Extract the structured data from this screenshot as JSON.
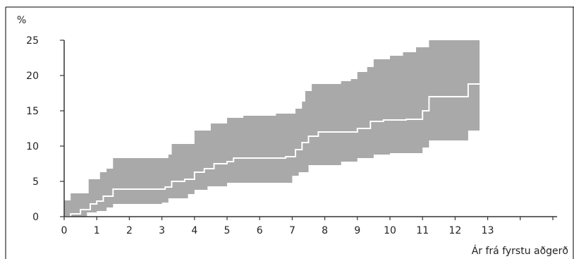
{
  "chart_data": {
    "type": "area",
    "ylabel": "%",
    "xlabel": "Ár frá fyrstu aðgerð",
    "xlim": [
      0,
      15
    ],
    "ylim": [
      0,
      25
    ],
    "x_ticks": [
      0,
      1,
      2,
      3,
      4,
      5,
      6,
      7,
      8,
      9,
      10,
      11,
      12,
      13
    ],
    "y_ticks": [
      0,
      5,
      10,
      15,
      20,
      25
    ],
    "grid": false,
    "colors": {
      "band": "#a9a9a9",
      "line": "#ffffff",
      "axis": "#333333",
      "frame": "#000000"
    },
    "series": [
      {
        "role": "upper-confidence-limit",
        "steps": [
          [
            0,
            2.3
          ],
          [
            0.2,
            3.3
          ],
          [
            0.75,
            5.3
          ],
          [
            1.1,
            6.3
          ],
          [
            1.3,
            6.8
          ],
          [
            1.5,
            8.3
          ],
          [
            3.2,
            8.8
          ],
          [
            3.3,
            10.3
          ],
          [
            4.0,
            12.2
          ],
          [
            4.5,
            13.2
          ],
          [
            5.0,
            14.0
          ],
          [
            5.5,
            14.3
          ],
          [
            6.5,
            14.6
          ],
          [
            7.1,
            15.3
          ],
          [
            7.3,
            16.3
          ],
          [
            7.4,
            17.8
          ],
          [
            7.6,
            18.8
          ],
          [
            8.5,
            19.2
          ],
          [
            8.8,
            19.5
          ],
          [
            9.0,
            20.5
          ],
          [
            9.3,
            21.2
          ],
          [
            9.5,
            22.3
          ],
          [
            10.0,
            22.8
          ],
          [
            10.4,
            23.3
          ],
          [
            10.8,
            24.0
          ],
          [
            11.2,
            25.0
          ],
          [
            12.75,
            25.0
          ]
        ]
      },
      {
        "role": "estimate",
        "steps": [
          [
            0,
            0
          ],
          [
            0.2,
            0.4
          ],
          [
            0.5,
            1.0
          ],
          [
            0.8,
            1.8
          ],
          [
            1.0,
            2.2
          ],
          [
            1.2,
            2.9
          ],
          [
            1.5,
            3.9
          ],
          [
            3.1,
            4.2
          ],
          [
            3.3,
            5.0
          ],
          [
            3.7,
            5.3
          ],
          [
            4.0,
            6.3
          ],
          [
            4.3,
            6.8
          ],
          [
            4.6,
            7.5
          ],
          [
            5.0,
            7.8
          ],
          [
            5.2,
            8.3
          ],
          [
            6.0,
            8.3
          ],
          [
            6.8,
            8.5
          ],
          [
            7.1,
            9.5
          ],
          [
            7.3,
            10.5
          ],
          [
            7.5,
            11.4
          ],
          [
            7.8,
            12.0
          ],
          [
            8.5,
            12.0
          ],
          [
            9.0,
            12.5
          ],
          [
            9.4,
            13.5
          ],
          [
            9.8,
            13.7
          ],
          [
            10.5,
            13.8
          ],
          [
            11.0,
            15.0
          ],
          [
            11.2,
            17.0
          ],
          [
            12.2,
            17.0
          ],
          [
            12.4,
            18.8
          ],
          [
            12.75,
            18.8
          ]
        ]
      },
      {
        "role": "lower-confidence-limit",
        "steps": [
          [
            0,
            0
          ],
          [
            0.6,
            0
          ],
          [
            0.7,
            0.6
          ],
          [
            1.0,
            0.8
          ],
          [
            1.3,
            1.3
          ],
          [
            1.5,
            1.8
          ],
          [
            3.0,
            2.0
          ],
          [
            3.2,
            2.6
          ],
          [
            3.8,
            3.2
          ],
          [
            4.0,
            3.8
          ],
          [
            4.4,
            4.3
          ],
          [
            5.0,
            4.8
          ],
          [
            6.5,
            4.8
          ],
          [
            7.0,
            5.8
          ],
          [
            7.2,
            6.3
          ],
          [
            7.5,
            7.3
          ],
          [
            8.5,
            7.8
          ],
          [
            9.0,
            8.3
          ],
          [
            9.5,
            8.8
          ],
          [
            10.0,
            9.0
          ],
          [
            11.0,
            9.8
          ],
          [
            11.2,
            10.8
          ],
          [
            12.2,
            10.8
          ],
          [
            12.4,
            12.2
          ],
          [
            12.75,
            12.2
          ]
        ]
      }
    ]
  }
}
